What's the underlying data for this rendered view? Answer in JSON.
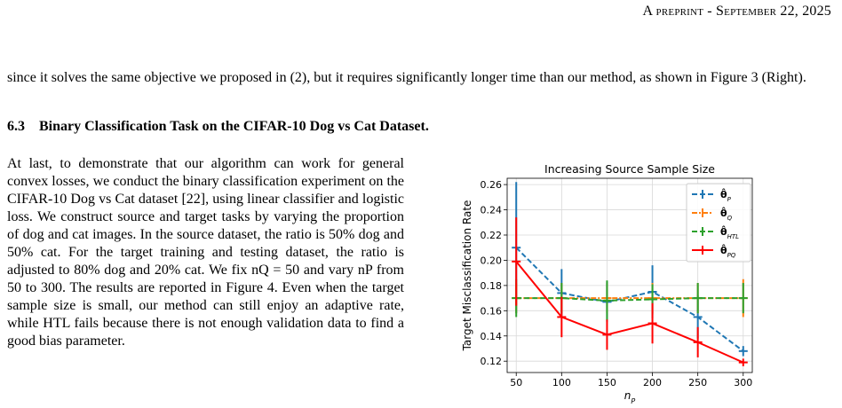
{
  "header": {
    "left_part": "A preprint - ",
    "right_part": "September 22, 2025"
  },
  "para_top": "since it solves the same objective we proposed in (2), but it requires significantly longer time than our method, as shown in Figure 3 (Right).",
  "section": {
    "number": "6.3",
    "title": "Binary Classification Task on the CIFAR-10 Dog vs Cat Dataset."
  },
  "para_left": "At last, to demonstrate that our algorithm can work for general convex losses, we conduct the binary classification experiment on the CIFAR-10 Dog vs Cat dataset [22], using linear classifier and logistic loss. We construct source and target tasks by varying the proportion of dog and cat images. In the source dataset, the ratio is 50% dog and 50% cat. For the target training and testing dataset, the ratio is adjusted to 80% dog and 20% cat. We fix nQ = 50 and vary nP from 50 to 300. The results are reported in Figure 4. Even when the target sample size is small, our method can still enjoy an adaptive rate, while HTL fails because there is not enough validation data to find a good bias parameter.",
  "chart_data": {
    "type": "line",
    "title": "Increasing Source Sample Size",
    "xlabel": "nP",
    "ylabel": "Target Misclassification Rate",
    "x": [
      50,
      100,
      150,
      200,
      250,
      300
    ],
    "xlim": [
      40,
      310
    ],
    "ylim": [
      0.111,
      0.265
    ],
    "xticks": [
      50,
      100,
      150,
      200,
      250,
      300
    ],
    "yticks": [
      0.12,
      0.14,
      0.16,
      0.18,
      0.2,
      0.22,
      0.24,
      0.26
    ],
    "grid": true,
    "legend_position": "top-right",
    "series": [
      {
        "name": "θ̂P",
        "color": "#1f77b4",
        "dash": "dashed",
        "values": [
          0.21,
          0.174,
          0.167,
          0.175,
          0.155,
          0.128
        ],
        "errors": [
          0.052,
          0.019,
          0.016,
          0.021,
          0.017,
          0.004
        ]
      },
      {
        "name": "θ̂Q",
        "color": "#ff7f0e",
        "dash": "dashdot",
        "values": [
          0.17,
          0.17,
          0.17,
          0.17,
          0.17,
          0.17
        ],
        "errors": [
          0.012,
          0.012,
          0.012,
          0.012,
          0.012,
          0.015
        ]
      },
      {
        "name": "θ̂HTL",
        "color": "#2ca02c",
        "dash": "dashed",
        "values": [
          0.17,
          0.17,
          0.168,
          0.169,
          0.17,
          0.17
        ],
        "errors": [
          0.015,
          0.012,
          0.016,
          0.012,
          0.012,
          0.012
        ]
      },
      {
        "name": "θ̂PQ",
        "color": "#ff0000",
        "dash": "solid",
        "values": [
          0.199,
          0.155,
          0.141,
          0.15,
          0.135,
          0.119
        ],
        "errors": [
          0.035,
          0.016,
          0.012,
          0.016,
          0.012,
          0.003
        ]
      }
    ]
  }
}
